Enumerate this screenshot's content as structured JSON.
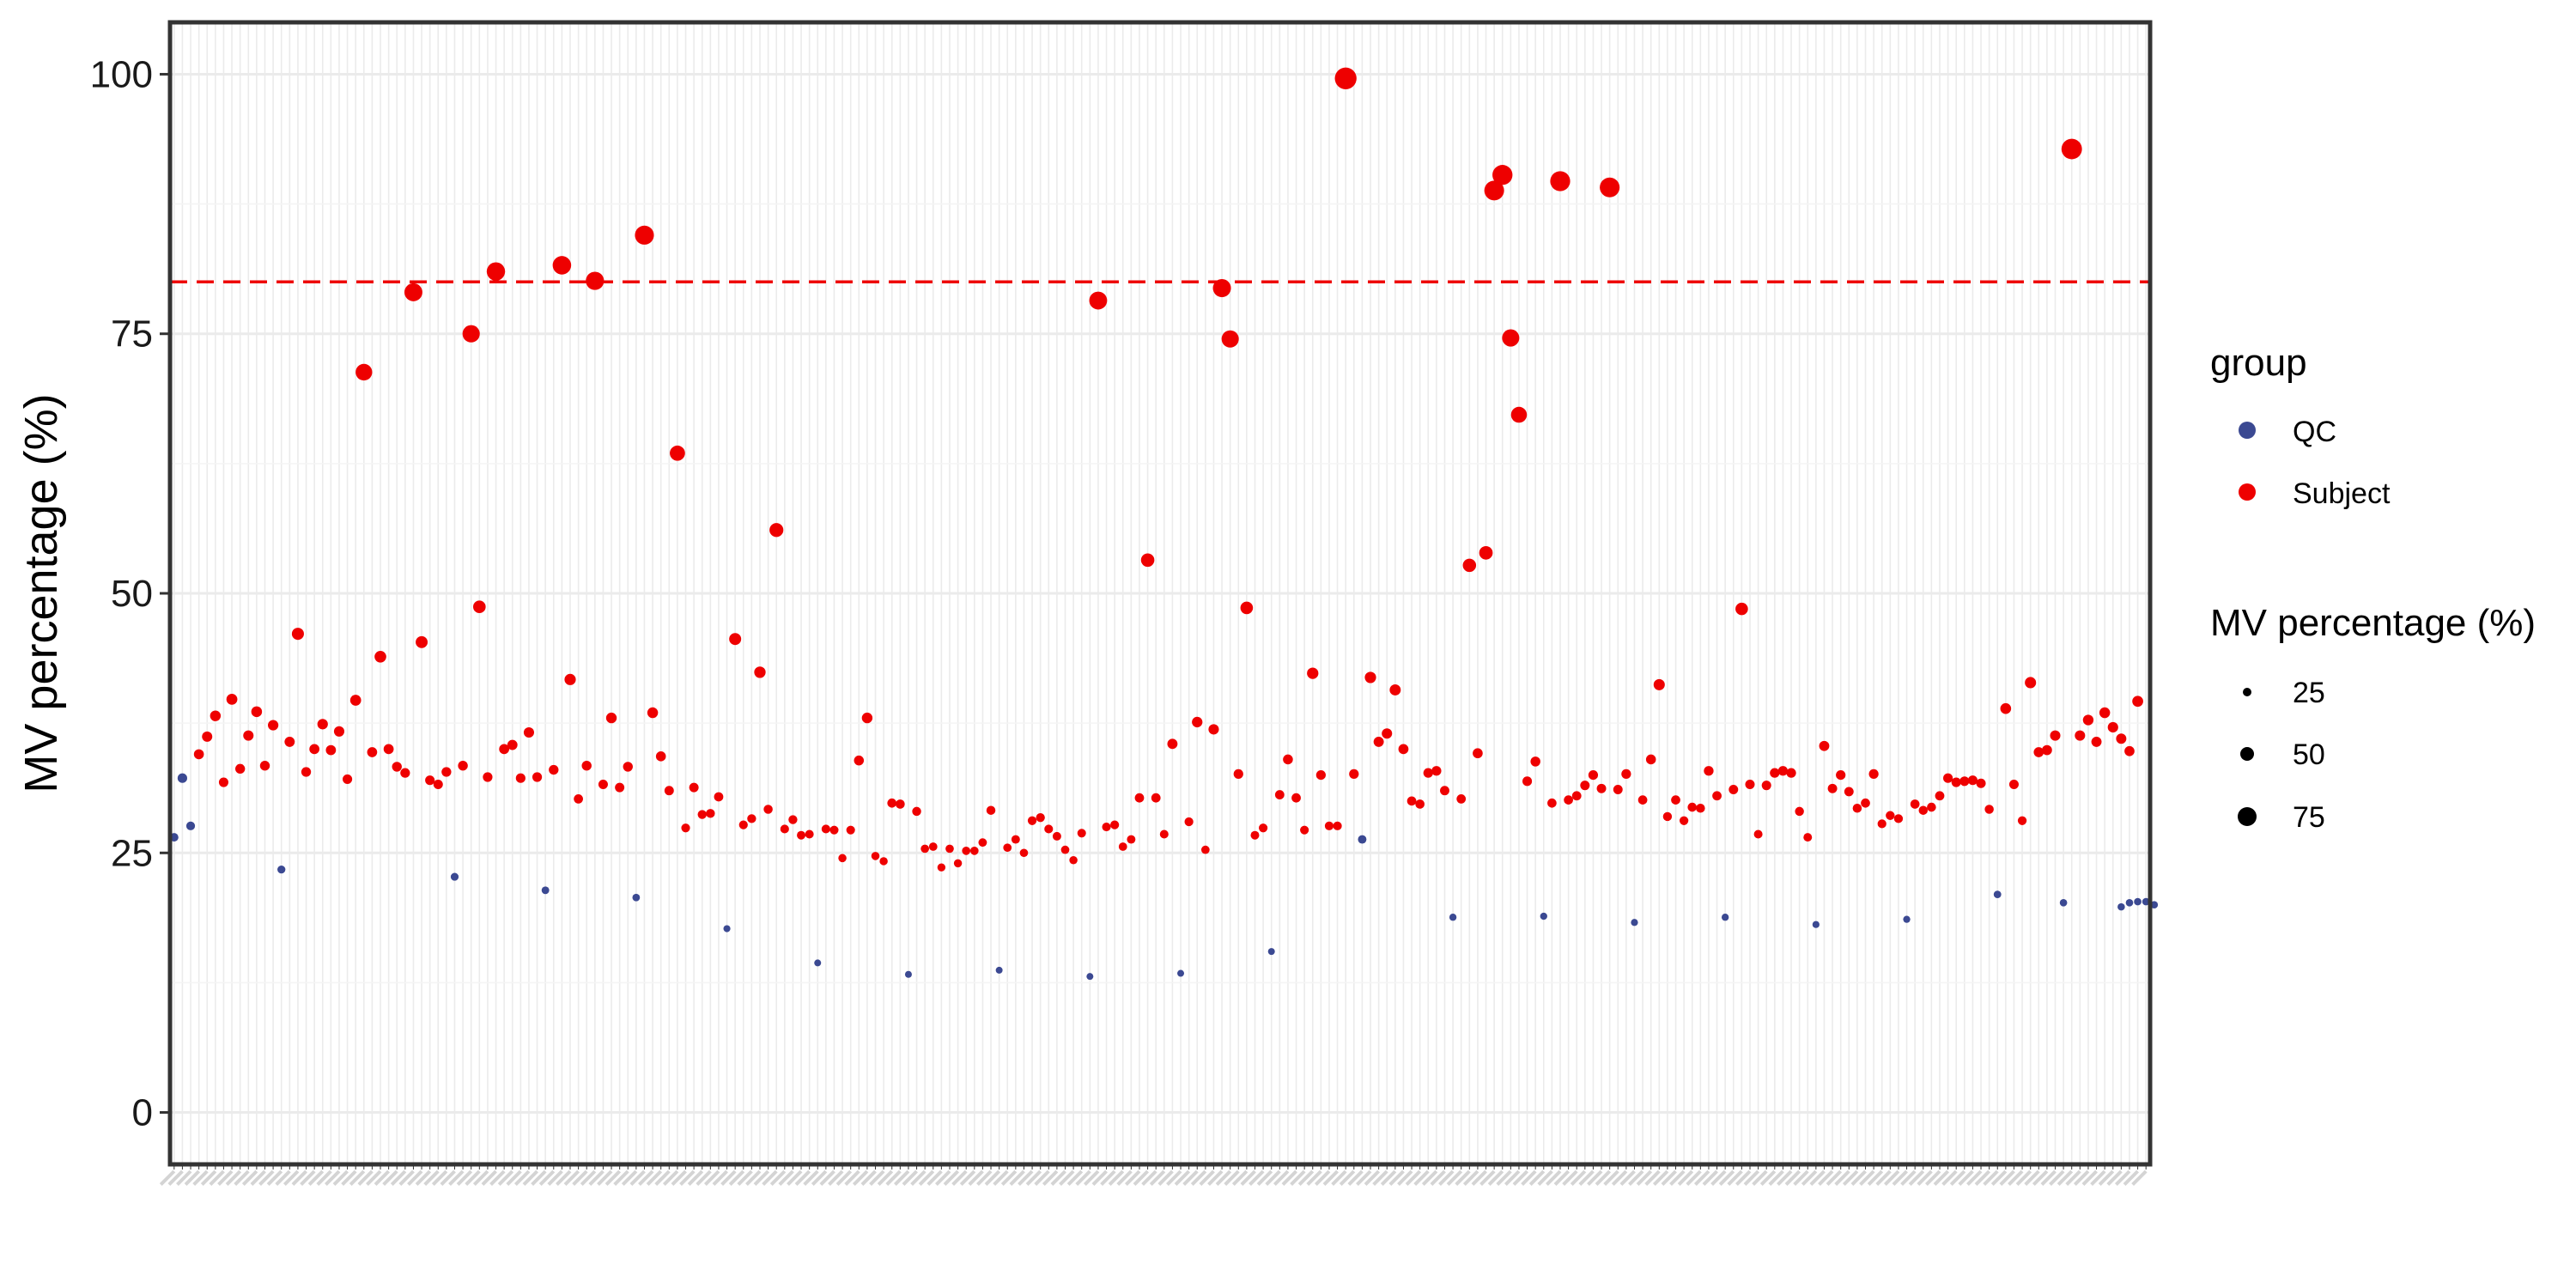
{
  "chart_data": {
    "type": "scatter",
    "title": "",
    "xlabel": "",
    "ylabel": "MV percentage (%)",
    "ylim": [
      -5,
      105
    ],
    "yticks": [
      0,
      25,
      50,
      75,
      100
    ],
    "x_tick_labels_legible": false,
    "n_categories": 240,
    "grid": true,
    "threshold": {
      "value": 80,
      "style": "dashed",
      "color": "#EE0000"
    },
    "colors": {
      "QC": "#3B4992",
      "Subject": "#EE0000",
      "threshold": "#EE0000"
    },
    "legend": {
      "position": "right",
      "color_title": "group",
      "color_entries": [
        "QC",
        "Subject"
      ],
      "size_title": "MV percentage (%)",
      "size_entries": [
        25,
        50,
        75
      ]
    },
    "series": [
      {
        "name": "QC",
        "points": [
          [
            1,
            26.5
          ],
          [
            2,
            32.2
          ],
          [
            3,
            27.6
          ],
          [
            14,
            23.4
          ],
          [
            35,
            22.7
          ],
          [
            46,
            21.4
          ],
          [
            57,
            20.7
          ],
          [
            68,
            17.7
          ],
          [
            79,
            14.4
          ],
          [
            90,
            13.3
          ],
          [
            101,
            13.7
          ],
          [
            112,
            13.1
          ],
          [
            123,
            13.4
          ],
          [
            134,
            15.5
          ],
          [
            145,
            26.3
          ],
          [
            156,
            18.8
          ],
          [
            167,
            18.9
          ],
          [
            178,
            18.3
          ],
          [
            189,
            18.8
          ],
          [
            200,
            18.1
          ],
          [
            211,
            18.6
          ],
          [
            222,
            21.0
          ],
          [
            230,
            20.2
          ],
          [
            237,
            19.8
          ],
          [
            238,
            20.2
          ],
          [
            239,
            20.3
          ],
          [
            240,
            20.3
          ],
          [
            241,
            20.0
          ]
        ]
      },
      {
        "name": "Subject",
        "points": [
          [
            4,
            34.5
          ],
          [
            5,
            36.2
          ],
          [
            6,
            38.2
          ],
          [
            7,
            31.8
          ],
          [
            8,
            39.8
          ],
          [
            9,
            33.1
          ],
          [
            10,
            36.3
          ],
          [
            11,
            38.6
          ],
          [
            12,
            33.4
          ],
          [
            13,
            37.3
          ],
          [
            15,
            35.7
          ],
          [
            16,
            46.1
          ],
          [
            17,
            32.8
          ],
          [
            18,
            35.0
          ],
          [
            19,
            37.4
          ],
          [
            20,
            34.9
          ],
          [
            21,
            36.7
          ],
          [
            22,
            32.1
          ],
          [
            23,
            39.7
          ],
          [
            24,
            71.3
          ],
          [
            25,
            34.7
          ],
          [
            26,
            43.9
          ],
          [
            27,
            35.0
          ],
          [
            28,
            33.3
          ],
          [
            29,
            32.7
          ],
          [
            30,
            79.0
          ],
          [
            31,
            45.3
          ],
          [
            32,
            32.0
          ],
          [
            33,
            31.6
          ],
          [
            34,
            32.8
          ],
          [
            36,
            33.4
          ],
          [
            37,
            75.0
          ],
          [
            38,
            48.7
          ],
          [
            39,
            32.3
          ],
          [
            40,
            81.0
          ],
          [
            41,
            35.0
          ],
          [
            42,
            35.4
          ],
          [
            43,
            32.2
          ],
          [
            44,
            36.6
          ],
          [
            45,
            32.3
          ],
          [
            47,
            33.0
          ],
          [
            48,
            81.6
          ],
          [
            49,
            41.7
          ],
          [
            50,
            30.2
          ],
          [
            51,
            33.4
          ],
          [
            52,
            80.1
          ],
          [
            53,
            31.6
          ],
          [
            54,
            38.0
          ],
          [
            55,
            31.3
          ],
          [
            56,
            33.3
          ],
          [
            58,
            84.5
          ],
          [
            59,
            38.5
          ],
          [
            60,
            34.3
          ],
          [
            61,
            31.0
          ],
          [
            62,
            63.5
          ],
          [
            63,
            27.4
          ],
          [
            64,
            31.3
          ],
          [
            65,
            28.7
          ],
          [
            66,
            28.8
          ],
          [
            67,
            30.4
          ],
          [
            69,
            45.6
          ],
          [
            70,
            27.7
          ],
          [
            71,
            28.3
          ],
          [
            72,
            42.4
          ],
          [
            73,
            29.2
          ],
          [
            74,
            56.1
          ],
          [
            75,
            27.3
          ],
          [
            76,
            28.2
          ],
          [
            77,
            26.7
          ],
          [
            78,
            26.8
          ],
          [
            80,
            27.3
          ],
          [
            81,
            27.2
          ],
          [
            82,
            24.5
          ],
          [
            83,
            27.2
          ],
          [
            84,
            33.9
          ],
          [
            85,
            38.0
          ],
          [
            86,
            24.7
          ],
          [
            87,
            24.2
          ],
          [
            88,
            29.8
          ],
          [
            89,
            29.7
          ],
          [
            91,
            29.0
          ],
          [
            92,
            25.4
          ],
          [
            93,
            25.6
          ],
          [
            94,
            23.6
          ],
          [
            95,
            25.4
          ],
          [
            96,
            24.0
          ],
          [
            97,
            25.2
          ],
          [
            98,
            25.2
          ],
          [
            99,
            26.0
          ],
          [
            100,
            29.1
          ],
          [
            102,
            25.5
          ],
          [
            103,
            26.3
          ],
          [
            104,
            25.0
          ],
          [
            105,
            28.1
          ],
          [
            106,
            28.4
          ],
          [
            107,
            27.3
          ],
          [
            108,
            26.6
          ],
          [
            109,
            25.3
          ],
          [
            110,
            24.3
          ],
          [
            111,
            26.9
          ],
          [
            113,
            78.2
          ],
          [
            114,
            27.5
          ],
          [
            115,
            27.7
          ],
          [
            116,
            25.6
          ],
          [
            117,
            26.3
          ],
          [
            118,
            30.3
          ],
          [
            119,
            53.2
          ],
          [
            120,
            30.3
          ],
          [
            121,
            26.8
          ],
          [
            122,
            35.5
          ],
          [
            124,
            28.0
          ],
          [
            125,
            37.6
          ],
          [
            126,
            25.3
          ],
          [
            127,
            36.9
          ],
          [
            128,
            79.4
          ],
          [
            129,
            74.5
          ],
          [
            130,
            32.6
          ],
          [
            131,
            48.6
          ],
          [
            132,
            26.7
          ],
          [
            133,
            27.4
          ],
          [
            135,
            30.6
          ],
          [
            136,
            34.0
          ],
          [
            137,
            30.3
          ],
          [
            138,
            27.2
          ],
          [
            139,
            42.3
          ],
          [
            140,
            32.5
          ],
          [
            141,
            27.6
          ],
          [
            142,
            27.6
          ],
          [
            143,
            99.6
          ],
          [
            144,
            32.6
          ],
          [
            146,
            41.9
          ],
          [
            147,
            35.7
          ],
          [
            148,
            36.5
          ],
          [
            149,
            40.7
          ],
          [
            150,
            35.0
          ],
          [
            151,
            30.0
          ],
          [
            152,
            29.7
          ],
          [
            153,
            32.7
          ],
          [
            154,
            32.9
          ],
          [
            155,
            31.0
          ],
          [
            157,
            30.2
          ],
          [
            158,
            52.7
          ],
          [
            159,
            34.6
          ],
          [
            160,
            53.9
          ],
          [
            161,
            88.8
          ],
          [
            162,
            90.3
          ],
          [
            163,
            74.6
          ],
          [
            164,
            67.2
          ],
          [
            165,
            31.9
          ],
          [
            166,
            33.8
          ],
          [
            168,
            29.8
          ],
          [
            169,
            89.7
          ],
          [
            170,
            30.1
          ],
          [
            171,
            30.5
          ],
          [
            172,
            31.5
          ],
          [
            173,
            32.5
          ],
          [
            174,
            31.2
          ],
          [
            175,
            89.1
          ],
          [
            176,
            31.1
          ],
          [
            177,
            32.6
          ],
          [
            179,
            30.1
          ],
          [
            180,
            34.0
          ],
          [
            181,
            41.2
          ],
          [
            182,
            28.5
          ],
          [
            183,
            30.1
          ],
          [
            184,
            28.1
          ],
          [
            185,
            29.4
          ],
          [
            186,
            29.3
          ],
          [
            187,
            32.9
          ],
          [
            188,
            30.5
          ],
          [
            190,
            31.1
          ],
          [
            191,
            48.5
          ],
          [
            192,
            31.6
          ],
          [
            193,
            26.8
          ],
          [
            194,
            31.5
          ],
          [
            195,
            32.7
          ],
          [
            196,
            32.9
          ],
          [
            197,
            32.7
          ],
          [
            198,
            29.0
          ],
          [
            199,
            26.5
          ],
          [
            201,
            35.3
          ],
          [
            202,
            31.2
          ],
          [
            203,
            32.5
          ],
          [
            204,
            30.9
          ],
          [
            205,
            29.3
          ],
          [
            206,
            29.8
          ],
          [
            207,
            32.6
          ],
          [
            208,
            27.8
          ],
          [
            209,
            28.6
          ],
          [
            210,
            28.3
          ],
          [
            212,
            29.7
          ],
          [
            213,
            29.1
          ],
          [
            214,
            29.4
          ],
          [
            215,
            30.5
          ],
          [
            216,
            32.2
          ],
          [
            217,
            31.8
          ],
          [
            218,
            31.9
          ],
          [
            219,
            32.0
          ],
          [
            220,
            31.7
          ],
          [
            221,
            29.2
          ],
          [
            223,
            38.9
          ],
          [
            224,
            31.6
          ],
          [
            225,
            28.1
          ],
          [
            226,
            41.4
          ],
          [
            227,
            34.7
          ],
          [
            228,
            34.9
          ],
          [
            229,
            36.3
          ],
          [
            231,
            92.8
          ],
          [
            232,
            36.3
          ],
          [
            233,
            37.8
          ],
          [
            234,
            35.7
          ],
          [
            235,
            38.5
          ],
          [
            236,
            37.1
          ],
          [
            237,
            36.0
          ],
          [
            238,
            34.8
          ],
          [
            239,
            39.6
          ]
        ]
      }
    ]
  }
}
